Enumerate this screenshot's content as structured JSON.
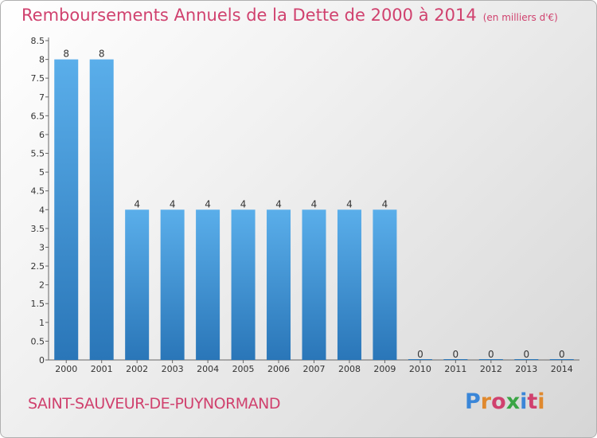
{
  "title": "Remboursements Annuels de la Dette de 2000 à 2014",
  "unit": "(en milliers d'€)",
  "town": "SAINT-SAUVEUR-DE-PUYNORMAND",
  "logo": {
    "text": "Proxiti",
    "letter_colors": [
      "#3a86d8",
      "#e0892e",
      "#d0416e",
      "#3aa545",
      "#3a86d8",
      "#d0416e",
      "#e0892e"
    ]
  },
  "colors": {
    "bar_top": "#5aaeea",
    "bar_bottom": "#2a76b8",
    "text": "#d0416e"
  },
  "chart_data": {
    "type": "bar",
    "title": "Remboursements Annuels de la Dette de 2000 à 2014",
    "xlabel": "",
    "ylabel": "",
    "categories": [
      "2000",
      "2001",
      "2002",
      "2003",
      "2004",
      "2005",
      "2006",
      "2007",
      "2008",
      "2009",
      "2010",
      "2011",
      "2012",
      "2013",
      "2014"
    ],
    "values": [
      8,
      8,
      4,
      4,
      4,
      4,
      4,
      4,
      4,
      4,
      0,
      0,
      0,
      0,
      0
    ],
    "value_labels": [
      "8",
      "8",
      "4",
      "4",
      "4",
      "4",
      "4",
      "4",
      "4",
      "4",
      "0",
      "0",
      "0",
      "0",
      "0"
    ],
    "ylim": [
      0,
      8.5
    ],
    "yticks": [
      0,
      0.5,
      1,
      1.5,
      2,
      2.5,
      3,
      3.5,
      4,
      4.5,
      5,
      5.5,
      6,
      6.5,
      7,
      7.5,
      8,
      8.5
    ],
    "ytick_labels": [
      "0",
      "0.5",
      "1",
      "1.5",
      "2",
      "2.5",
      "3",
      "3.5",
      "4",
      "4.5",
      "5",
      "5.5",
      "6",
      "6.5",
      "7",
      "7.5",
      "8",
      "8.5"
    ],
    "grid": false,
    "legend": "none"
  }
}
